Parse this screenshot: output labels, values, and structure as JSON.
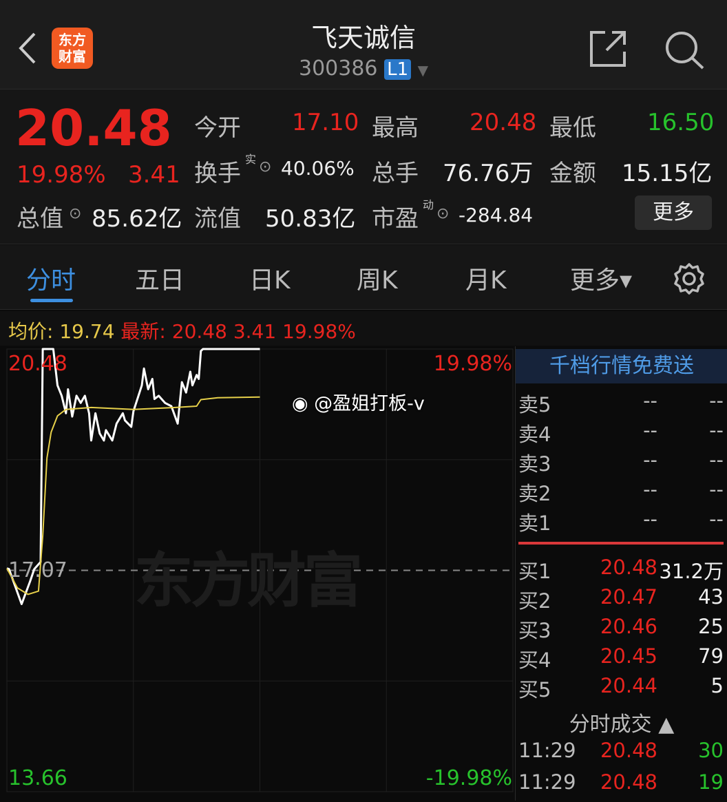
{
  "header": {
    "title": "飞天诚信",
    "code": "300386",
    "level_badge": "L1",
    "logo_text": "东方财富",
    "icons": [
      "back-chevron-icon",
      "share-icon",
      "search-icon"
    ]
  },
  "quote": {
    "price": "20.48",
    "change_pct": "19.98%",
    "change": "3.41",
    "open_label": "今开",
    "open": "17.10",
    "high_label": "最高",
    "high": "20.48",
    "low_label": "最低",
    "low": "16.50",
    "turnover_label": "换手",
    "turnover_sup": "实",
    "turnover": "40.06%",
    "volume_label": "总手",
    "volume": "76.76万",
    "amount_label": "金额",
    "amount": "15.15亿",
    "mktcap_label": "总值",
    "mktcap": "85.62亿",
    "float_label": "流值",
    "float": "50.83亿",
    "pe_label": "市盈",
    "pe_sup": "动",
    "pe": "-284.84",
    "more": "更多"
  },
  "tabs": [
    {
      "label": "分时",
      "active": true
    },
    {
      "label": "五日"
    },
    {
      "label": "日K"
    },
    {
      "label": "周K"
    },
    {
      "label": "月K"
    },
    {
      "label": "更多▾"
    }
  ],
  "info": {
    "avg_label": "均价:",
    "avg": "19.74",
    "last_label": "最新:",
    "last": "20.48",
    "change": "3.41",
    "change_pct": "19.98%"
  },
  "chart_data": {
    "type": "line",
    "ylim": [
      13.66,
      20.48
    ],
    "prev_close": "17.07",
    "y_top_label": "20.48",
    "y_bottom_label": "13.66",
    "pct_top": "19.98%",
    "pct_bottom": "-19.98%",
    "watermark": "东方财富",
    "overlay": "@盈姐打板-v",
    "series": [
      {
        "color": "#ffffff",
        "points": [
          [
            "09:30",
            17.1
          ],
          [
            "09:31",
            17.09
          ],
          [
            "09:37",
            16.55
          ],
          [
            "09:41",
            16.9
          ],
          [
            "09:43",
            17.09
          ],
          [
            "09:46",
            17.2
          ],
          [
            "09:47",
            20.48
          ],
          [
            "09:52",
            20.48
          ],
          [
            "09:54",
            19.92
          ],
          [
            "09:56",
            19.76
          ],
          [
            "09:58",
            19.49
          ],
          [
            "09:59",
            19.86
          ],
          [
            "10:01",
            19.44
          ],
          [
            "10:03",
            19.76
          ],
          [
            "10:05",
            19.65
          ],
          [
            "10:07",
            19.76
          ],
          [
            "10:09",
            19.49
          ],
          [
            "10:10",
            19.07
          ],
          [
            "10:12",
            19.49
          ],
          [
            "10:14",
            19.18
          ],
          [
            "10:16",
            19.07
          ],
          [
            "10:17",
            19.23
          ],
          [
            "10:20",
            19.07
          ],
          [
            "10:22",
            19.33
          ],
          [
            "10:25",
            19.49
          ],
          [
            "10:26",
            19.38
          ],
          [
            "10:29",
            19.28
          ],
          [
            "10:30",
            19.52
          ],
          [
            "10:34",
            19.92
          ],
          [
            "10:35",
            20.18
          ],
          [
            "10:37",
            19.86
          ],
          [
            "10:39",
            20.02
          ],
          [
            "10:40",
            19.71
          ],
          [
            "10:42",
            19.76
          ],
          [
            "10:45",
            19.65
          ],
          [
            "10:48",
            19.6
          ],
          [
            "10:51",
            19.33
          ],
          [
            "10:53",
            19.97
          ],
          [
            "10:55",
            19.81
          ],
          [
            "10:57",
            20.13
          ],
          [
            "10:58",
            19.92
          ],
          [
            "11:00",
            20.08
          ],
          [
            "11:01",
            20.02
          ],
          [
            "11:02",
            20.45
          ],
          [
            "11:03",
            20.48
          ],
          [
            "11:30",
            20.48
          ]
        ]
      },
      {
        "color": "#e6d04a",
        "points": [
          [
            "09:30",
            17.1
          ],
          [
            "09:35",
            16.8
          ],
          [
            "09:40",
            16.7
          ],
          [
            "09:45",
            16.75
          ],
          [
            "09:47",
            17.6
          ],
          [
            "09:49",
            18.8
          ],
          [
            "09:51",
            19.2
          ],
          [
            "09:54",
            19.45
          ],
          [
            "09:58",
            19.55
          ],
          [
            "10:10",
            19.58
          ],
          [
            "10:30",
            19.55
          ],
          [
            "10:50",
            19.58
          ],
          [
            "11:00",
            19.6
          ],
          [
            "11:02",
            19.7
          ],
          [
            "11:10",
            19.73
          ],
          [
            "11:30",
            19.74
          ]
        ]
      }
    ]
  },
  "book": {
    "promo": "千档行情免费送",
    "asks": [
      {
        "label": "卖5",
        "price": "--",
        "vol": "--"
      },
      {
        "label": "卖4",
        "price": "--",
        "vol": "--"
      },
      {
        "label": "卖3",
        "price": "--",
        "vol": "--"
      },
      {
        "label": "卖2",
        "price": "--",
        "vol": "--"
      },
      {
        "label": "卖1",
        "price": "--",
        "vol": "--"
      }
    ],
    "bids": [
      {
        "label": "买1",
        "price": "20.48",
        "vol": "31.2万"
      },
      {
        "label": "买2",
        "price": "20.47",
        "vol": "43"
      },
      {
        "label": "买3",
        "price": "20.46",
        "vol": "25"
      },
      {
        "label": "买4",
        "price": "20.45",
        "vol": "79"
      },
      {
        "label": "买5",
        "price": "20.44",
        "vol": "5"
      }
    ],
    "trades_label": "分时成交 ▲",
    "trades": [
      {
        "time": "11:29",
        "price": "20.48",
        "vol": "30"
      },
      {
        "time": "11:29",
        "price": "20.48",
        "vol": "19"
      }
    ]
  }
}
